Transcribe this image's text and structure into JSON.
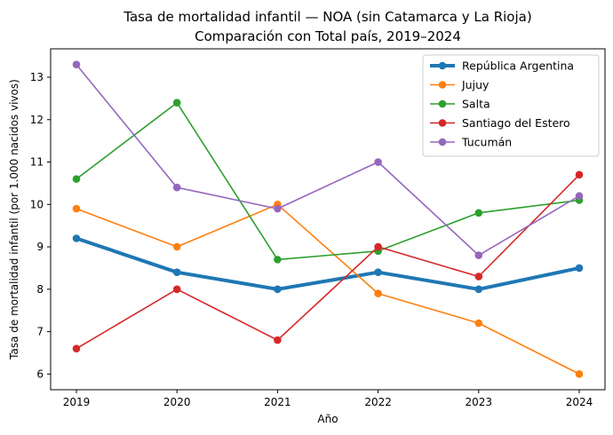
{
  "chart_data": {
    "type": "line",
    "title": "Tasa de mortalidad infantil — NOA (sin Catamarca y La Rioja)",
    "subtitle": "Comparación con Total país, 2019–2024",
    "xlabel": "Año",
    "ylabel": "Tasa de mortalidad infantil (por 1.000 nacidos vivos)",
    "x": [
      "2019",
      "2020",
      "2021",
      "2022",
      "2023",
      "2024"
    ],
    "yticks": [
      6,
      7,
      8,
      9,
      10,
      11,
      12,
      13
    ],
    "ylim": [
      5.63,
      13.67
    ],
    "grid": false,
    "legend_position": "top-right",
    "series": [
      {
        "name": "República Argentina",
        "color": "#1f77b4",
        "emphasis": true,
        "values": [
          9.2,
          8.4,
          8.0,
          8.4,
          8.0,
          8.5
        ]
      },
      {
        "name": "Jujuy",
        "color": "#ff7f0e",
        "values": [
          9.9,
          9.0,
          10.0,
          7.9,
          7.2,
          6.0
        ]
      },
      {
        "name": "Salta",
        "color": "#2ca02c",
        "values": [
          10.6,
          12.4,
          8.7,
          8.9,
          9.8,
          10.1
        ]
      },
      {
        "name": "Santiago del Estero",
        "color": "#d62728",
        "values": [
          6.6,
          8.0,
          6.8,
          9.0,
          8.3,
          10.7
        ]
      },
      {
        "name": "Tucumán",
        "color": "#9467bd",
        "values": [
          13.3,
          10.4,
          9.9,
          11.0,
          8.8,
          10.2
        ]
      }
    ]
  }
}
